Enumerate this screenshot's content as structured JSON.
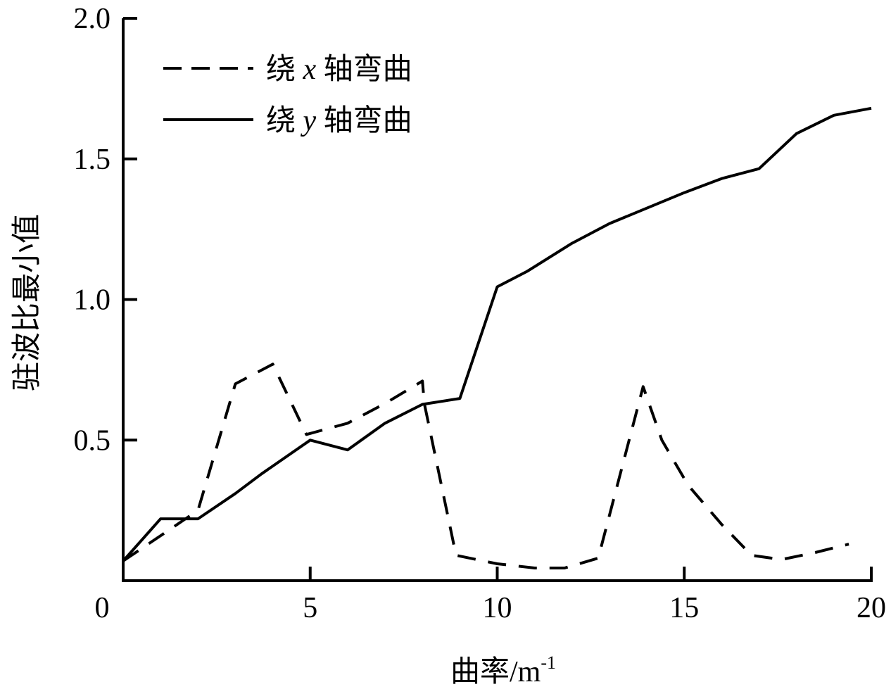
{
  "chart_data": {
    "type": "line",
    "xlabel": "曲率/m",
    "xlabel_sup": "-1",
    "ylabel": "驻波比最小值",
    "xlim": [
      0,
      20
    ],
    "ylim": [
      0,
      2.0
    ],
    "xticks": [
      "0",
      "5",
      "10",
      "15",
      "20"
    ],
    "xtick_values": [
      0,
      5,
      10,
      15,
      20
    ],
    "yticks": [
      "0.5",
      "1.0",
      "1.5",
      "2.0"
    ],
    "ytick_values": [
      0.5,
      1.0,
      1.5,
      2.0
    ],
    "grid": false,
    "legend_position": "top-left",
    "series": [
      {
        "name": "绕 x 轴弯曲",
        "name_parts": [
          "绕 ",
          "x",
          " 轴弯曲"
        ],
        "style": "dashed",
        "color": "#000000",
        "x": [
          0,
          1,
          2,
          3,
          4,
          4.9,
          6,
          7,
          8,
          8.05,
          8.9,
          10,
          11,
          11.8,
          12.7,
          13.9,
          14.4,
          15.1,
          16,
          16.8,
          17.6,
          18.5,
          19.4
        ],
        "y": [
          0.07,
          0.16,
          0.25,
          0.7,
          0.77,
          0.52,
          0.56,
          0.63,
          0.71,
          0.63,
          0.09,
          0.06,
          0.045,
          0.045,
          0.08,
          0.69,
          0.5,
          0.34,
          0.2,
          0.09,
          0.075,
          0.1,
          0.13
        ]
      },
      {
        "name": "绕 y 轴弯曲",
        "name_parts": [
          "绕 ",
          "y",
          " 轴弯曲"
        ],
        "style": "solid",
        "color": "#000000",
        "x": [
          0,
          1,
          2,
          3,
          3.7,
          5,
          6,
          7,
          8,
          9,
          10,
          10.8,
          12,
          13,
          15,
          16,
          17,
          18,
          19,
          20
        ],
        "y": [
          0.07,
          0.22,
          0.22,
          0.31,
          0.38,
          0.5,
          0.465,
          0.56,
          0.627,
          0.648,
          1.045,
          1.1,
          1.2,
          1.27,
          1.38,
          1.43,
          1.465,
          1.59,
          1.655,
          1.68
        ]
      }
    ]
  }
}
